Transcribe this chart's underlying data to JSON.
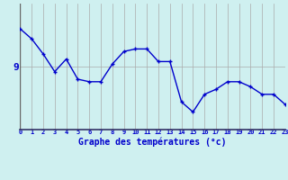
{
  "xlabel": "Graphe des températures (°c)",
  "hours": [
    0,
    1,
    2,
    3,
    4,
    5,
    6,
    7,
    8,
    9,
    10,
    11,
    12,
    13,
    14,
    15,
    16,
    17,
    18,
    19,
    20,
    21,
    22,
    23
  ],
  "temperatures": [
    10.5,
    10.1,
    9.5,
    8.8,
    9.3,
    8.5,
    8.4,
    8.4,
    9.1,
    9.6,
    9.7,
    9.7,
    9.2,
    9.2,
    7.6,
    7.2,
    7.9,
    8.1,
    8.4,
    8.4,
    8.2,
    7.9,
    7.9,
    7.5
  ],
  "ytick_labels": [
    "9"
  ],
  "ytick_values": [
    9
  ],
  "bg_color": "#cff0f0",
  "line_color": "#0000cc",
  "marker_color": "#0000cc",
  "grid_color": "#aaaaaa",
  "axis_color": "#333366",
  "label_color": "#0000cc",
  "vline0_color": "#666666",
  "ylim_min": 6.5,
  "ylim_max": 11.5,
  "xlim_min": 0,
  "xlim_max": 23
}
